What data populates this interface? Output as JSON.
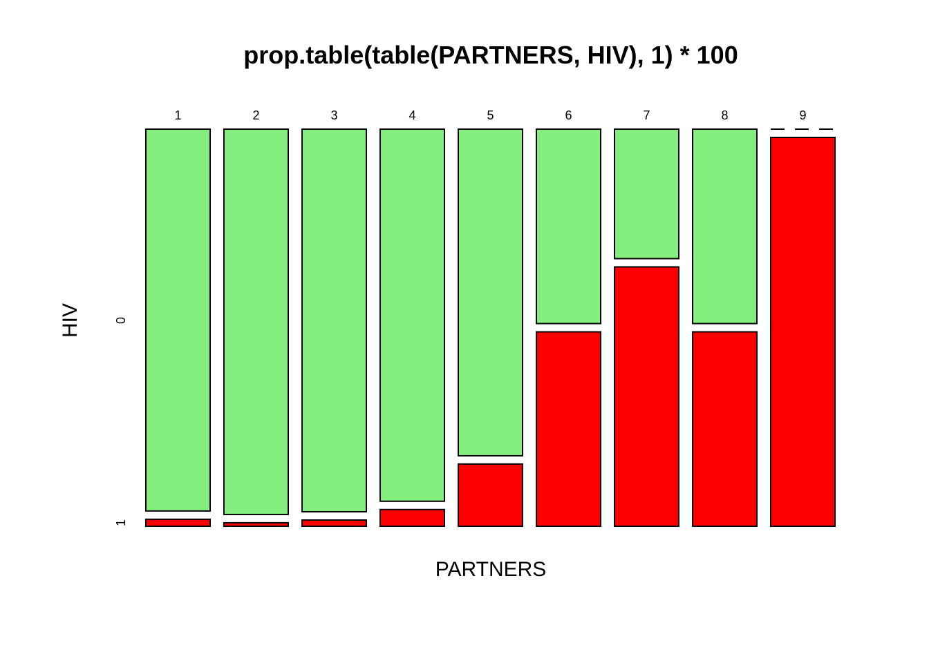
{
  "chart_data": {
    "type": "mosaic",
    "title": "prop.table(table(PARTNERS, HIV), 1) * 100",
    "x_label": "PARTNERS",
    "y_label": "HIV",
    "categories": [
      "1",
      "2",
      "3",
      "4",
      "5",
      "6",
      "7",
      "8",
      "9"
    ],
    "series": [
      {
        "name": "0",
        "color": "#84ef7f",
        "values": [
          98.2,
          99.1,
          98.4,
          95.7,
          84,
          50,
          33.3,
          50,
          0
        ]
      },
      {
        "name": "1",
        "color": "#ff0000",
        "values": [
          1.8,
          0.9,
          1.6,
          4.3,
          16,
          50,
          66.7,
          50,
          100
        ]
      }
    ]
  }
}
